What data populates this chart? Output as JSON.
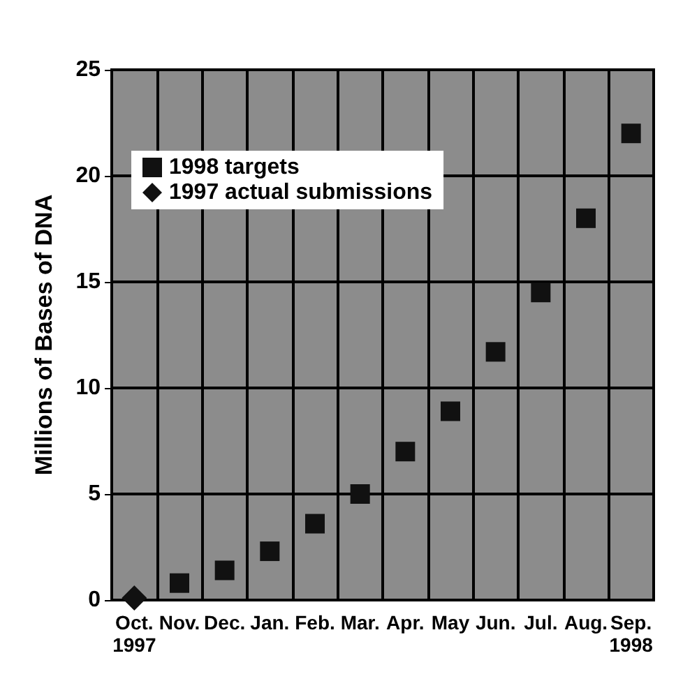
{
  "chart_data": {
    "type": "scatter",
    "ylabel": "Millions of Bases of DNA",
    "categories": [
      "Oct.\n1997",
      "Nov.",
      "Dec.",
      "Jan.",
      "Feb.",
      "Mar.",
      "Apr.",
      "May",
      "Jun.",
      "Jul.",
      "Aug.",
      "Sep.\n1998"
    ],
    "series": [
      {
        "name": "1998 targets",
        "color": "#111111",
        "marker": "square",
        "values": [
          null,
          0.8,
          1.4,
          2.3,
          3.6,
          5.0,
          7.0,
          8.9,
          11.7,
          14.5,
          18,
          22
        ]
      },
      {
        "name": "1997 actual submissions",
        "color": "#111111",
        "marker": "diamond",
        "values": [
          0.1,
          null,
          null,
          null,
          null,
          null,
          null,
          null,
          null,
          null,
          null,
          null
        ]
      }
    ],
    "ylim": [
      0,
      25
    ],
    "yticks": [
      0,
      5,
      10,
      15,
      20,
      25
    ],
    "grid": true,
    "legend": "top left"
  }
}
